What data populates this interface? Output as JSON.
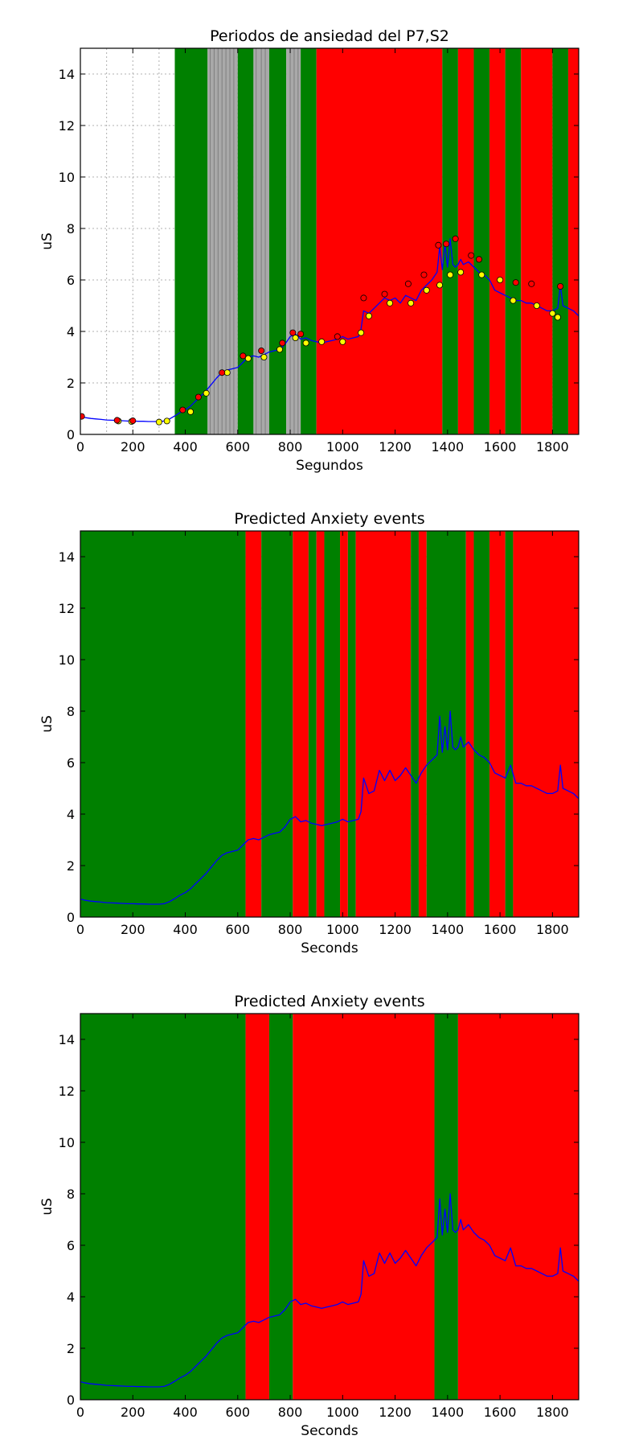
{
  "figure": {
    "background": "#ffffff"
  },
  "colors": {
    "green": "#008000",
    "red": "#ff0000",
    "gray": "#a9a9a9",
    "gray_line": "#7f7f7f",
    "signal": "#0000ff",
    "grid": "#b0b0b0",
    "peak_marker": "#ff0000",
    "valley_marker": "#ffff00"
  },
  "chart_data": [
    {
      "type": "line",
      "title": "Periodos de ansiedad del P7,S2",
      "xlabel": "Segundos",
      "ylabel": "uS",
      "xlim": [
        0,
        1900
      ],
      "ylim": [
        0,
        15
      ],
      "xticks": [
        0,
        200,
        400,
        600,
        800,
        1000,
        1200,
        1400,
        1600,
        1800
      ],
      "yticks": [
        0,
        2,
        4,
        6,
        8,
        10,
        12,
        14
      ],
      "grid": true,
      "grid_x_minor_before": 360,
      "grid_x_minor_step": 100,
      "spans": [
        {
          "start": 360,
          "end": 485,
          "color": "green"
        },
        {
          "start": 485,
          "end": 600,
          "color": "gray"
        },
        {
          "start": 600,
          "end": 660,
          "color": "green"
        },
        {
          "start": 660,
          "end": 720,
          "color": "gray"
        },
        {
          "start": 720,
          "end": 785,
          "color": "green"
        },
        {
          "start": 785,
          "end": 840,
          "color": "gray"
        },
        {
          "start": 840,
          "end": 900,
          "color": "green"
        },
        {
          "start": 900,
          "end": 1380,
          "color": "red"
        },
        {
          "start": 1380,
          "end": 1440,
          "color": "green"
        },
        {
          "start": 1440,
          "end": 1500,
          "color": "red"
        },
        {
          "start": 1500,
          "end": 1560,
          "color": "green"
        },
        {
          "start": 1560,
          "end": 1620,
          "color": "red"
        },
        {
          "start": 1620,
          "end": 1680,
          "color": "green"
        },
        {
          "start": 1680,
          "end": 1800,
          "color": "red"
        },
        {
          "start": 1800,
          "end": 1860,
          "color": "green"
        },
        {
          "start": 1860,
          "end": 1900,
          "color": "red"
        }
      ],
      "gray_lines": [
        495,
        510,
        525,
        540,
        555,
        570,
        585,
        670,
        690,
        705,
        800,
        815,
        830
      ],
      "series": [
        {
          "color": "signal",
          "x": [
            0,
            20,
            40,
            60,
            80,
            100,
            120,
            140,
            160,
            180,
            200,
            220,
            240,
            260,
            280,
            300,
            320,
            340,
            360,
            380,
            400,
            420,
            440,
            460,
            480,
            500,
            520,
            540,
            560,
            580,
            600,
            620,
            640,
            660,
            680,
            700,
            720,
            740,
            760,
            780,
            800,
            820,
            840,
            860,
            880,
            900,
            920,
            940,
            960,
            980,
            1000,
            1020,
            1040,
            1060,
            1070,
            1080,
            1100,
            1120,
            1140,
            1160,
            1180,
            1200,
            1220,
            1240,
            1260,
            1280,
            1300,
            1320,
            1340,
            1360,
            1370,
            1380,
            1390,
            1400,
            1410,
            1420,
            1430,
            1440,
            1450,
            1460,
            1480,
            1500,
            1520,
            1540,
            1560,
            1580,
            1600,
            1620,
            1640,
            1660,
            1680,
            1700,
            1720,
            1740,
            1760,
            1780,
            1800,
            1820,
            1830,
            1840,
            1860,
            1880,
            1900
          ],
          "y": [
            0.7,
            0.65,
            0.62,
            0.6,
            0.58,
            0.56,
            0.55,
            0.54,
            0.53,
            0.52,
            0.52,
            0.51,
            0.51,
            0.5,
            0.5,
            0.5,
            0.52,
            0.6,
            0.72,
            0.85,
            0.95,
            1.1,
            1.3,
            1.5,
            1.7,
            1.95,
            2.2,
            2.4,
            2.5,
            2.55,
            2.6,
            2.8,
            3.0,
            3.05,
            3.0,
            3.1,
            3.2,
            3.25,
            3.3,
            3.5,
            3.8,
            3.9,
            3.7,
            3.75,
            3.65,
            3.6,
            3.55,
            3.6,
            3.65,
            3.7,
            3.8,
            3.7,
            3.75,
            3.8,
            4.1,
            4.8,
            4.7,
            4.9,
            5.1,
            5.3,
            5.2,
            5.3,
            5.1,
            5.4,
            5.3,
            5.2,
            5.6,
            5.8,
            6.0,
            6.3,
            7.3,
            6.4,
            7.4,
            6.5,
            7.6,
            6.6,
            6.5,
            6.6,
            6.8,
            6.6,
            6.7,
            6.5,
            6.3,
            6.2,
            6.0,
            5.6,
            5.5,
            5.4,
            5.3,
            5.2,
            5.2,
            5.1,
            5.1,
            5.0,
            4.9,
            4.8,
            4.8,
            4.9,
            5.8,
            5.0,
            4.9,
            4.8,
            4.6
          ]
        }
      ],
      "peaks": [
        [
          5,
          0.7
        ],
        [
          140,
          0.55
        ],
        [
          200,
          0.53
        ],
        [
          390,
          0.95
        ],
        [
          450,
          1.45
        ],
        [
          540,
          2.4
        ],
        [
          620,
          3.05
        ],
        [
          690,
          3.25
        ],
        [
          770,
          3.55
        ],
        [
          810,
          3.95
        ],
        [
          840,
          3.9
        ],
        [
          980,
          3.8
        ],
        [
          1080,
          5.3
        ],
        [
          1160,
          5.45
        ],
        [
          1250,
          5.85
        ],
        [
          1310,
          6.2
        ],
        [
          1365,
          7.35
        ],
        [
          1395,
          7.4
        ],
        [
          1430,
          7.6
        ],
        [
          1490,
          6.95
        ],
        [
          1520,
          6.8
        ],
        [
          1660,
          5.9
        ],
        [
          1720,
          5.85
        ],
        [
          1830,
          5.75
        ]
      ],
      "valleys": [
        [
          145,
          0.52
        ],
        [
          195,
          0.5
        ],
        [
          300,
          0.48
        ],
        [
          330,
          0.52
        ],
        [
          420,
          0.88
        ],
        [
          480,
          1.6
        ],
        [
          560,
          2.4
        ],
        [
          640,
          2.95
        ],
        [
          700,
          3.0
        ],
        [
          760,
          3.3
        ],
        [
          820,
          3.75
        ],
        [
          860,
          3.55
        ],
        [
          920,
          3.6
        ],
        [
          1000,
          3.6
        ],
        [
          1070,
          3.95
        ],
        [
          1100,
          4.6
        ],
        [
          1180,
          5.1
        ],
        [
          1260,
          5.1
        ],
        [
          1320,
          5.6
        ],
        [
          1370,
          5.8
        ],
        [
          1410,
          6.2
        ],
        [
          1450,
          6.3
        ],
        [
          1530,
          6.2
        ],
        [
          1600,
          6.0
        ],
        [
          1650,
          5.2
        ],
        [
          1740,
          5.0
        ],
        [
          1800,
          4.7
        ],
        [
          1820,
          4.55
        ]
      ]
    },
    {
      "type": "line",
      "title": "Predicted Anxiety events",
      "xlabel": "Seconds",
      "ylabel": "uS",
      "xlim": [
        0,
        1900
      ],
      "ylim": [
        0,
        15
      ],
      "xticks": [
        0,
        200,
        400,
        600,
        800,
        1000,
        1200,
        1400,
        1600,
        1800
      ],
      "yticks": [
        0,
        2,
        4,
        6,
        8,
        10,
        12,
        14
      ],
      "grid": true,
      "spans": [
        {
          "start": 0,
          "end": 630,
          "color": "green"
        },
        {
          "start": 630,
          "end": 690,
          "color": "red"
        },
        {
          "start": 690,
          "end": 810,
          "color": "green"
        },
        {
          "start": 810,
          "end": 870,
          "color": "red"
        },
        {
          "start": 870,
          "end": 900,
          "color": "green"
        },
        {
          "start": 900,
          "end": 930,
          "color": "red"
        },
        {
          "start": 930,
          "end": 990,
          "color": "green"
        },
        {
          "start": 990,
          "end": 1020,
          "color": "red"
        },
        {
          "start": 1020,
          "end": 1050,
          "color": "green"
        },
        {
          "start": 1050,
          "end": 1260,
          "color": "red"
        },
        {
          "start": 1260,
          "end": 1290,
          "color": "green"
        },
        {
          "start": 1290,
          "end": 1320,
          "color": "red"
        },
        {
          "start": 1320,
          "end": 1470,
          "color": "green"
        },
        {
          "start": 1470,
          "end": 1500,
          "color": "red"
        },
        {
          "start": 1500,
          "end": 1560,
          "color": "green"
        },
        {
          "start": 1560,
          "end": 1620,
          "color": "red"
        },
        {
          "start": 1620,
          "end": 1650,
          "color": "green"
        },
        {
          "start": 1650,
          "end": 1900,
          "color": "red"
        }
      ],
      "series": [
        {
          "color": "signal",
          "x": [
            0,
            20,
            40,
            60,
            80,
            100,
            120,
            140,
            160,
            180,
            200,
            220,
            240,
            260,
            280,
            300,
            320,
            340,
            360,
            380,
            400,
            420,
            440,
            460,
            480,
            500,
            520,
            540,
            560,
            580,
            600,
            620,
            640,
            660,
            680,
            700,
            720,
            740,
            760,
            780,
            800,
            820,
            840,
            860,
            880,
            900,
            920,
            940,
            960,
            980,
            1000,
            1020,
            1040,
            1060,
            1070,
            1080,
            1100,
            1120,
            1140,
            1160,
            1180,
            1200,
            1220,
            1240,
            1260,
            1280,
            1300,
            1320,
            1340,
            1360,
            1370,
            1380,
            1390,
            1400,
            1410,
            1420,
            1430,
            1440,
            1450,
            1460,
            1480,
            1500,
            1520,
            1540,
            1560,
            1580,
            1600,
            1620,
            1640,
            1660,
            1680,
            1700,
            1720,
            1740,
            1760,
            1780,
            1800,
            1820,
            1830,
            1840,
            1860,
            1880,
            1900
          ],
          "y": [
            0.7,
            0.65,
            0.62,
            0.6,
            0.58,
            0.56,
            0.55,
            0.54,
            0.53,
            0.52,
            0.52,
            0.51,
            0.51,
            0.5,
            0.5,
            0.5,
            0.52,
            0.6,
            0.72,
            0.85,
            0.95,
            1.1,
            1.3,
            1.5,
            1.7,
            1.95,
            2.2,
            2.4,
            2.5,
            2.55,
            2.6,
            2.8,
            3.0,
            3.05,
            3.0,
            3.1,
            3.2,
            3.25,
            3.3,
            3.5,
            3.8,
            3.9,
            3.7,
            3.75,
            3.65,
            3.6,
            3.55,
            3.6,
            3.65,
            3.7,
            3.8,
            3.7,
            3.75,
            3.8,
            4.1,
            5.4,
            4.8,
            4.9,
            5.7,
            5.3,
            5.7,
            5.3,
            5.5,
            5.8,
            5.5,
            5.2,
            5.6,
            5.9,
            6.1,
            6.3,
            7.8,
            6.4,
            7.4,
            6.5,
            8.0,
            6.6,
            6.5,
            6.6,
            7.0,
            6.6,
            6.8,
            6.5,
            6.3,
            6.2,
            6.0,
            5.6,
            5.5,
            5.4,
            5.9,
            5.2,
            5.2,
            5.1,
            5.1,
            5.0,
            4.9,
            4.8,
            4.8,
            4.9,
            5.9,
            5.0,
            4.9,
            4.8,
            4.6
          ]
        }
      ]
    },
    {
      "type": "line",
      "title": "Predicted Anxiety events",
      "xlabel": "Seconds",
      "ylabel": "uS",
      "xlim": [
        0,
        1900
      ],
      "ylim": [
        0,
        15
      ],
      "xticks": [
        0,
        200,
        400,
        600,
        800,
        1000,
        1200,
        1400,
        1600,
        1800
      ],
      "yticks": [
        0,
        2,
        4,
        6,
        8,
        10,
        12,
        14
      ],
      "grid": true,
      "spans": [
        {
          "start": 0,
          "end": 630,
          "color": "green"
        },
        {
          "start": 630,
          "end": 720,
          "color": "red"
        },
        {
          "start": 720,
          "end": 810,
          "color": "green"
        },
        {
          "start": 810,
          "end": 1350,
          "color": "red"
        },
        {
          "start": 1350,
          "end": 1440,
          "color": "green"
        },
        {
          "start": 1440,
          "end": 1900,
          "color": "red"
        }
      ],
      "series": [
        {
          "color": "signal",
          "x": [
            0,
            20,
            40,
            60,
            80,
            100,
            120,
            140,
            160,
            180,
            200,
            220,
            240,
            260,
            280,
            300,
            320,
            340,
            360,
            380,
            400,
            420,
            440,
            460,
            480,
            500,
            520,
            540,
            560,
            580,
            600,
            620,
            640,
            660,
            680,
            700,
            720,
            740,
            760,
            780,
            800,
            820,
            840,
            860,
            880,
            900,
            920,
            940,
            960,
            980,
            1000,
            1020,
            1040,
            1060,
            1070,
            1080,
            1100,
            1120,
            1140,
            1160,
            1180,
            1200,
            1220,
            1240,
            1260,
            1280,
            1300,
            1320,
            1340,
            1360,
            1370,
            1380,
            1390,
            1400,
            1410,
            1420,
            1430,
            1440,
            1450,
            1460,
            1480,
            1500,
            1520,
            1540,
            1560,
            1580,
            1600,
            1620,
            1640,
            1660,
            1680,
            1700,
            1720,
            1740,
            1760,
            1780,
            1800,
            1820,
            1830,
            1840,
            1860,
            1880,
            1900
          ],
          "y": [
            0.7,
            0.65,
            0.62,
            0.6,
            0.58,
            0.56,
            0.55,
            0.54,
            0.53,
            0.52,
            0.52,
            0.51,
            0.51,
            0.5,
            0.5,
            0.5,
            0.52,
            0.6,
            0.72,
            0.85,
            0.95,
            1.1,
            1.3,
            1.5,
            1.7,
            1.95,
            2.2,
            2.4,
            2.5,
            2.55,
            2.6,
            2.8,
            3.0,
            3.05,
            3.0,
            3.1,
            3.2,
            3.25,
            3.3,
            3.5,
            3.8,
            3.9,
            3.7,
            3.75,
            3.65,
            3.6,
            3.55,
            3.6,
            3.65,
            3.7,
            3.8,
            3.7,
            3.75,
            3.8,
            4.1,
            5.4,
            4.8,
            4.9,
            5.7,
            5.3,
            5.7,
            5.3,
            5.5,
            5.8,
            5.5,
            5.2,
            5.6,
            5.9,
            6.1,
            6.3,
            7.8,
            6.4,
            7.4,
            6.5,
            8.0,
            6.6,
            6.5,
            6.6,
            7.0,
            6.6,
            6.8,
            6.5,
            6.3,
            6.2,
            6.0,
            5.6,
            5.5,
            5.4,
            5.9,
            5.2,
            5.2,
            5.1,
            5.1,
            5.0,
            4.9,
            4.8,
            4.8,
            4.9,
            5.9,
            5.0,
            4.9,
            4.8,
            4.6
          ]
        }
      ]
    }
  ]
}
